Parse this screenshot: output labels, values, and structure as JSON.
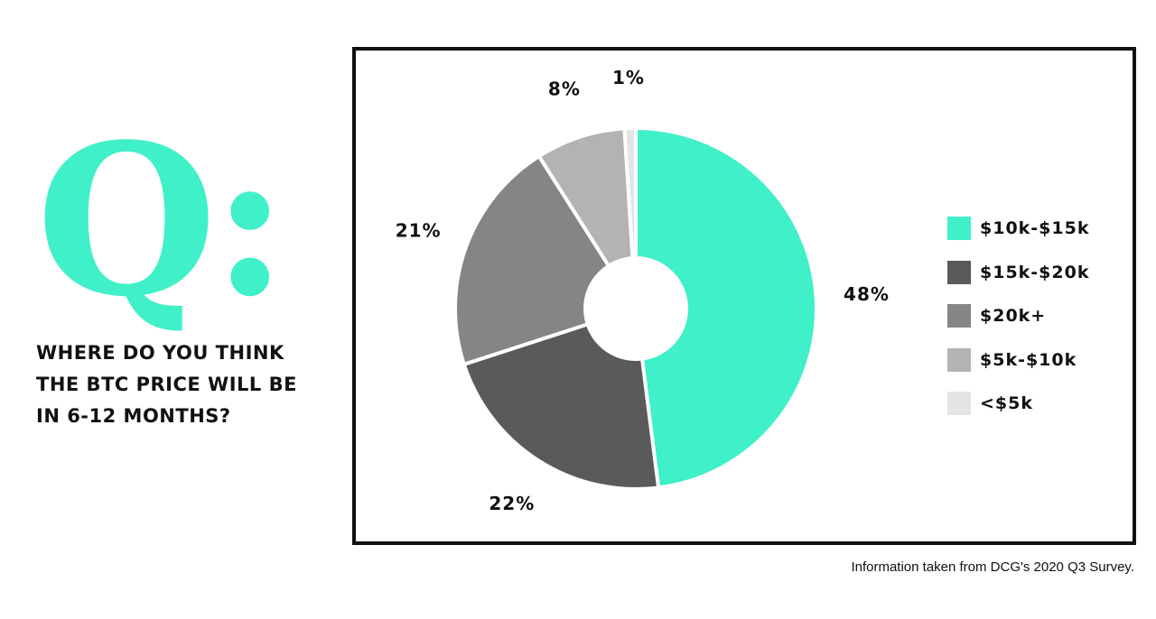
{
  "question": {
    "mark": "Q:",
    "lines": [
      "WHERE DO YOU THINK",
      "THE BTC PRICE WILL BE",
      "IN 6-12 MONTHS?"
    ]
  },
  "footnote": "Information taken from DCG's 2020 Q3 Survey.",
  "colors": {
    "accent": "#3ff0c8",
    "text": "#111111",
    "frame": "#111111"
  },
  "chart_data": {
    "type": "pie",
    "donut": true,
    "title": "",
    "legend_position": "right",
    "slices": [
      {
        "label": "$10k-$15k",
        "value": 48,
        "value_label": "48%",
        "color": "#3ff0c8"
      },
      {
        "label": "$15k-$20k",
        "value": 22,
        "value_label": "22%",
        "color": "#5a5a5a"
      },
      {
        "label": "$20k+",
        "value": 21,
        "value_label": "21%",
        "color": "#858585"
      },
      {
        "label": "$5k-$10k",
        "value": 8,
        "value_label": "8%",
        "color": "#b3b3b3"
      },
      {
        "label": "<$5k",
        "value": 1,
        "value_label": "1%",
        "color": "#e4e4e4"
      }
    ]
  }
}
